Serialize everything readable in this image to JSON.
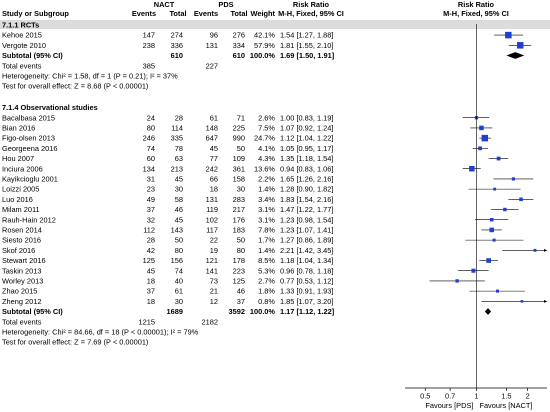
{
  "chart_data": {
    "type": "forest",
    "header": {
      "study_or_subgroup": "Study or Subgroup",
      "group1": "NACT",
      "group2": "PDS",
      "events": "Events",
      "total": "Total",
      "weight": "Weight",
      "rr_label": "Risk Ratio",
      "rr_method": "M-H, Fixed, 95% CI"
    },
    "axis": {
      "scale": "log",
      "range": [
        0.38,
        2.6
      ],
      "null_value": 1,
      "ticks": [
        "0.5",
        "0.7",
        "1",
        "1.5",
        "2"
      ],
      "tick_values": [
        0.5,
        0.7,
        1,
        1.5,
        2
      ],
      "left_label": "Favours [PDS]",
      "right_label": "Favours [NACT]"
    },
    "subgroups": [
      {
        "title": "7.1.1 RCTs",
        "studies": [
          {
            "study": "Kehoe 2015",
            "e1": "147",
            "t1": "274",
            "e2": "96",
            "t2": "276",
            "weight": "42.1%",
            "ci_text": "1.54 [1.27, 1.88]",
            "rr": 1.54,
            "lo": 1.27,
            "hi": 1.88
          },
          {
            "study": "Vergote 2010",
            "e1": "238",
            "t1": "336",
            "e2": "131",
            "t2": "334",
            "weight": "57.9%",
            "ci_text": "1.81 [1.55, 2.10]",
            "rr": 1.81,
            "lo": 1.55,
            "hi": 2.1
          }
        ],
        "subtotal": {
          "label": "Subtotal (95% CI)",
          "t1": "610",
          "t2": "610",
          "weight": "100.0%",
          "ci_text": "1.69 [1.50, 1.91]",
          "rr": 1.69,
          "lo": 1.5,
          "hi": 1.91
        },
        "total_events": {
          "label": "Total events",
          "e1": "385",
          "e2": "227"
        },
        "heterogeneity": "Heterogeneity: Chi² = 1.58, df = 1 (P = 0.21); I² = 37%",
        "overall_effect": "Test for overall effect: Z = 8.68 (P < 0.00001)"
      },
      {
        "title": "7.1.4 Observational studies",
        "studies": [
          {
            "study": "Bacalbasa 2015",
            "e1": "24",
            "t1": "28",
            "e2": "61",
            "t2": "71",
            "weight": "2.6%",
            "ci_text": "1.00 [0.83, 1.19]",
            "rr": 1.0,
            "lo": 0.83,
            "hi": 1.19
          },
          {
            "study": "Bian 2016",
            "e1": "80",
            "t1": "114",
            "e2": "148",
            "t2": "225",
            "weight": "7.5%",
            "ci_text": "1.07 [0.92, 1.24]",
            "rr": 1.07,
            "lo": 0.92,
            "hi": 1.24
          },
          {
            "study": "Figo-olsen 2013",
            "e1": "246",
            "t1": "335",
            "e2": "647",
            "t2": "990",
            "weight": "24.7%",
            "ci_text": "1.12 [1.04, 1.22]",
            "rr": 1.12,
            "lo": 1.04,
            "hi": 1.22
          },
          {
            "study": "Georgeena 2016",
            "e1": "74",
            "t1": "78",
            "e2": "45",
            "t2": "50",
            "weight": "4.1%",
            "ci_text": "1.05 [0.95, 1.17]",
            "rr": 1.05,
            "lo": 0.95,
            "hi": 1.17
          },
          {
            "study": "Hou 2007",
            "e1": "60",
            "t1": "63",
            "e2": "77",
            "t2": "109",
            "weight": "4.3%",
            "ci_text": "1.35 [1.18, 1.54]",
            "rr": 1.35,
            "lo": 1.18,
            "hi": 1.54
          },
          {
            "study": "Inciura 2006",
            "e1": "134",
            "t1": "213",
            "e2": "242",
            "t2": "361",
            "weight": "13.6%",
            "ci_text": "0.94 [0.83, 1.06]",
            "rr": 0.94,
            "lo": 0.83,
            "hi": 1.06
          },
          {
            "study": "Kayikcioglu 2001",
            "e1": "31",
            "t1": "45",
            "e2": "66",
            "t2": "158",
            "weight": "2.2%",
            "ci_text": "1.65 [1.26, 2.16]",
            "rr": 1.65,
            "lo": 1.26,
            "hi": 2.16
          },
          {
            "study": "Loizzi 2005",
            "e1": "23",
            "t1": "30",
            "e2": "18",
            "t2": "30",
            "weight": "1.4%",
            "ci_text": "1.28 [0.90, 1.82]",
            "rr": 1.28,
            "lo": 0.9,
            "hi": 1.82
          },
          {
            "study": "Luo 2016",
            "e1": "49",
            "t1": "58",
            "e2": "131",
            "t2": "283",
            "weight": "3.4%",
            "ci_text": "1.83 [1.54, 2.16]",
            "rr": 1.83,
            "lo": 1.54,
            "hi": 2.16
          },
          {
            "study": "Milam 2011",
            "e1": "37",
            "t1": "46",
            "e2": "119",
            "t2": "217",
            "weight": "3.1%",
            "ci_text": "1.47 [1.22, 1.77]",
            "rr": 1.47,
            "lo": 1.22,
            "hi": 1.77
          },
          {
            "study": "Rauh-Hain 2012",
            "e1": "32",
            "t1": "45",
            "e2": "102",
            "t2": "176",
            "weight": "3.1%",
            "ci_text": "1.23 [0.98, 1.54]",
            "rr": 1.23,
            "lo": 0.98,
            "hi": 1.54
          },
          {
            "study": "Rosen 2014",
            "e1": "112",
            "t1": "143",
            "e2": "117",
            "t2": "183",
            "weight": "7.8%",
            "ci_text": "1.23 [1.07, 1.41]",
            "rr": 1.23,
            "lo": 1.07,
            "hi": 1.41
          },
          {
            "study": "Siesto 2016",
            "e1": "28",
            "t1": "50",
            "e2": "22",
            "t2": "50",
            "weight": "1.7%",
            "ci_text": "1.27 [0.86, 1.89]",
            "rr": 1.27,
            "lo": 0.86,
            "hi": 1.89
          },
          {
            "study": "Skof 2016",
            "e1": "42",
            "t1": "80",
            "e2": "19",
            "t2": "80",
            "weight": "1.4%",
            "ci_text": "2.21 [1.42, 3.45]",
            "rr": 2.21,
            "lo": 1.42,
            "hi": 3.45
          },
          {
            "study": "Stewart 2016",
            "e1": "125",
            "t1": "156",
            "e2": "121",
            "t2": "178",
            "weight": "8.5%",
            "ci_text": "1.18 [1.04, 1.34]",
            "rr": 1.18,
            "lo": 1.04,
            "hi": 1.34
          },
          {
            "study": "Taskin 2013",
            "e1": "45",
            "t1": "74",
            "e2": "141",
            "t2": "223",
            "weight": "5.3%",
            "ci_text": "0.96 [0.78, 1.18]",
            "rr": 0.96,
            "lo": 0.78,
            "hi": 1.18
          },
          {
            "study": "Worley 2013",
            "e1": "18",
            "t1": "40",
            "e2": "73",
            "t2": "125",
            "weight": "2.7%",
            "ci_text": "0.77 [0.53, 1.12]",
            "rr": 0.77,
            "lo": 0.53,
            "hi": 1.12
          },
          {
            "study": "Zhao 2015",
            "e1": "37",
            "t1": "61",
            "e2": "21",
            "t2": "46",
            "weight": "1.8%",
            "ci_text": "1.33 [0.91, 1.93]",
            "rr": 1.33,
            "lo": 0.91,
            "hi": 1.93
          },
          {
            "study": "Zheng 2012",
            "e1": "18",
            "t1": "30",
            "e2": "12",
            "t2": "37",
            "weight": "0.8%",
            "ci_text": "1.85 [1.07, 3.20]",
            "rr": 1.85,
            "lo": 1.07,
            "hi": 3.2
          }
        ],
        "subtotal": {
          "label": "Subtotal (95% CI)",
          "t1": "1689",
          "t2": "3592",
          "weight": "100.0%",
          "ci_text": "1.17 [1.12, 1.22]",
          "rr": 1.17,
          "lo": 1.12,
          "hi": 1.22
        },
        "total_events": {
          "label": "Total events",
          "e1": "1215",
          "e2": "2182"
        },
        "heterogeneity": "Heterogeneity: Chi² = 84.66, df = 18 (P < 0.00001); I² = 79%",
        "overall_effect": "Test for overall effect: Z = 7.69 (P < 0.00001)"
      }
    ],
    "colors": {
      "marker": "#1f3fcf",
      "diamond": "#000000",
      "line": "#000000",
      "header_band": "#dcdcdc"
    }
  }
}
